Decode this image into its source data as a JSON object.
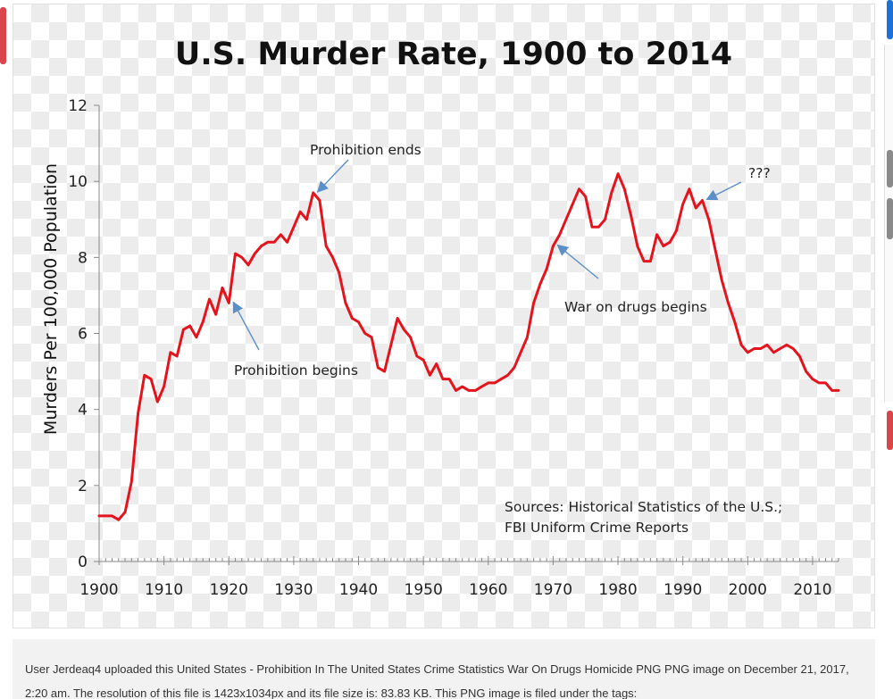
{
  "page": {
    "caption": "User Jerdeaq4 uploaded this United States - Prohibition In The United States Crime Statistics War On Drugs Homicide PNG PNG image on December 21, 2017, 2:20 am. The resolution of this file is 1423x1034px and its file size is: 83.83 KB. This PNG image is filed under the tags:",
    "colors": {
      "line": "#e3141d",
      "annotation_arrow": "#5b8fc7",
      "edge_red": "#d9454a",
      "edge_blue": "#1a73d9",
      "edge_gray": "#8a8a8a"
    }
  },
  "chart_data": {
    "type": "line",
    "title": "U.S. Murder Rate, 1900 to 2014",
    "xlabel": "",
    "ylabel": "Murders Per 100,000 Population",
    "xlim": [
      1900,
      2014
    ],
    "ylim": [
      0,
      12
    ],
    "x_ticks": [
      "1900",
      "1910",
      "1920",
      "1930",
      "1940",
      "1950",
      "1960",
      "1970",
      "1980",
      "1990",
      "2000",
      "2010"
    ],
    "y_ticks": [
      "0",
      "2",
      "4",
      "6",
      "8",
      "10",
      "12"
    ],
    "grid": false,
    "series": [
      {
        "color": "#e3141d",
        "x": [
          1900,
          1901,
          1902,
          1903,
          1904,
          1905,
          1906,
          1907,
          1908,
          1909,
          1910,
          1911,
          1912,
          1913,
          1914,
          1915,
          1916,
          1917,
          1918,
          1919,
          1920,
          1921,
          1922,
          1923,
          1924,
          1925,
          1926,
          1927,
          1928,
          1929,
          1930,
          1931,
          1932,
          1933,
          1934,
          1935,
          1936,
          1937,
          1938,
          1939,
          1940,
          1941,
          1942,
          1943,
          1944,
          1945,
          1946,
          1947,
          1948,
          1949,
          1950,
          1951,
          1952,
          1953,
          1954,
          1955,
          1956,
          1957,
          1958,
          1959,
          1960,
          1961,
          1962,
          1963,
          1964,
          1965,
          1966,
          1967,
          1968,
          1969,
          1970,
          1971,
          1972,
          1973,
          1974,
          1975,
          1976,
          1977,
          1978,
          1979,
          1980,
          1981,
          1982,
          1983,
          1984,
          1985,
          1986,
          1987,
          1988,
          1989,
          1990,
          1991,
          1992,
          1993,
          1994,
          1995,
          1996,
          1997,
          1998,
          1999,
          2000,
          2001,
          2002,
          2003,
          2004,
          2005,
          2006,
          2007,
          2008,
          2009,
          2010,
          2011,
          2012,
          2013,
          2014
        ],
        "y": [
          1.2,
          1.2,
          1.2,
          1.1,
          1.3,
          2.1,
          3.9,
          4.9,
          4.8,
          4.2,
          4.6,
          5.5,
          5.4,
          6.1,
          6.2,
          5.9,
          6.3,
          6.9,
          6.5,
          7.2,
          6.8,
          8.1,
          8.0,
          7.8,
          8.1,
          8.3,
          8.4,
          8.4,
          8.6,
          8.4,
          8.8,
          9.2,
          9.0,
          9.7,
          9.5,
          8.3,
          8.0,
          7.6,
          6.8,
          6.4,
          6.3,
          6.0,
          5.9,
          5.1,
          5.0,
          5.7,
          6.4,
          6.1,
          5.9,
          5.4,
          5.3,
          4.9,
          5.2,
          4.8,
          4.8,
          4.5,
          4.6,
          4.5,
          4.5,
          4.6,
          4.7,
          4.7,
          4.8,
          4.9,
          5.1,
          5.5,
          5.9,
          6.8,
          7.3,
          7.7,
          8.3,
          8.6,
          9.0,
          9.4,
          9.8,
          9.6,
          8.8,
          8.8,
          9.0,
          9.7,
          10.2,
          9.8,
          9.1,
          8.3,
          7.9,
          7.9,
          8.6,
          8.3,
          8.4,
          8.7,
          9.4,
          9.8,
          9.3,
          9.5,
          9.0,
          8.2,
          7.4,
          6.8,
          6.3,
          5.7,
          5.5,
          5.6,
          5.6,
          5.7,
          5.5,
          5.6,
          5.7,
          5.6,
          5.4,
          5.0,
          4.8,
          4.7,
          4.7,
          4.5,
          4.5
        ]
      }
    ],
    "annotations": [
      {
        "text": "Prohibition ends",
        "year": 1933,
        "value": 9.7
      },
      {
        "text": "???",
        "year": 1993,
        "value": 9.5
      },
      {
        "text": "War on drugs begins",
        "year": 1970,
        "value": 8.3
      },
      {
        "text": "Prohibition begins",
        "year": 1920,
        "value": 6.8
      }
    ],
    "sources_note": [
      "Sources: Historical Statistics of the U.S.;",
      "FBI Uniform Crime Reports"
    ]
  }
}
